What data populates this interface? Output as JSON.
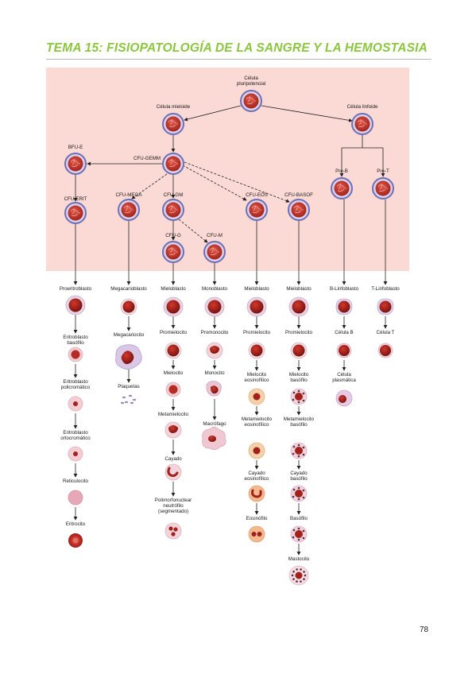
{
  "header": {
    "title": "TEMA 15: FISIOPATOLOGÍA DE LA SANGRE Y LA HEMOSTASIA",
    "accent_color": "#8cc63f"
  },
  "diagram": {
    "stem": {
      "pluripotent": "Célula\npluripotencial",
      "myeloid": "Célula mieloide",
      "lymphoid": "Célula linfoide",
      "bfu_e": "BFU-E",
      "cfu_gemm": "CFU-GEMM",
      "pre_b": "Pre-B",
      "pre_t": "Pre-T",
      "cfu_erit": "CFU-ERIT",
      "cfu_mega": "CFU-MEGA",
      "cfu_gm": "CFU-GM",
      "cfu_eos": "CFU-EOS",
      "cfu_basof": "CFU-BASOF",
      "cfu_g": "CFU-G",
      "cfu_m": "CFU-M"
    },
    "columns": {
      "erythroid": [
        "Proeritroblasto",
        "Eritroblasto\nbasófilo",
        "Eritroblasto\npolicromático",
        "Eritroblasto\nortocromático",
        "Reticulocito",
        "Eritrocito"
      ],
      "megakaryocytic": [
        "Megacarioblasto",
        "Megacariocito",
        "Plaquetas"
      ],
      "neutrophil": [
        "Mieloblasto",
        "Promielocito",
        "Mielocito",
        "Metamielocito",
        "Cayado",
        "Polimorfonuclear\nneutrófilo\n(segmentado)"
      ],
      "monocytic": [
        "Monoblasto",
        "Promonocito",
        "Monocito",
        "Macrófago"
      ],
      "eosinophil": [
        "Mieloblasto",
        "Promielocito",
        "Mielocito\neosinofílico",
        "Metamielocito\neosinofílico",
        "Cayado\neosinofílico",
        "Eosinófilo"
      ],
      "basophil": [
        "Mieloblasto",
        "Promielocito",
        "Mielocito\nbasófilo",
        "Metamielocito\nbasófilo",
        "Cayado\nbasófilo",
        "Basófilo",
        "Mastocito"
      ],
      "b_lymphoid": [
        "B-Linfoblasto",
        "Célula B",
        "Célula\nplasmática"
      ],
      "t_lymphoid": [
        "T-Linfoblasto",
        "Célula T"
      ]
    },
    "colors": {
      "panel": "#fbd9d4",
      "stem_cell": "#c0392b",
      "stem_ring": "#6f6fb5",
      "rbc": "#b8231d",
      "nucleus": "#9e1c18",
      "cytoplasm_light": "#eec6cc"
    }
  },
  "footer": {
    "page_number": "78"
  }
}
